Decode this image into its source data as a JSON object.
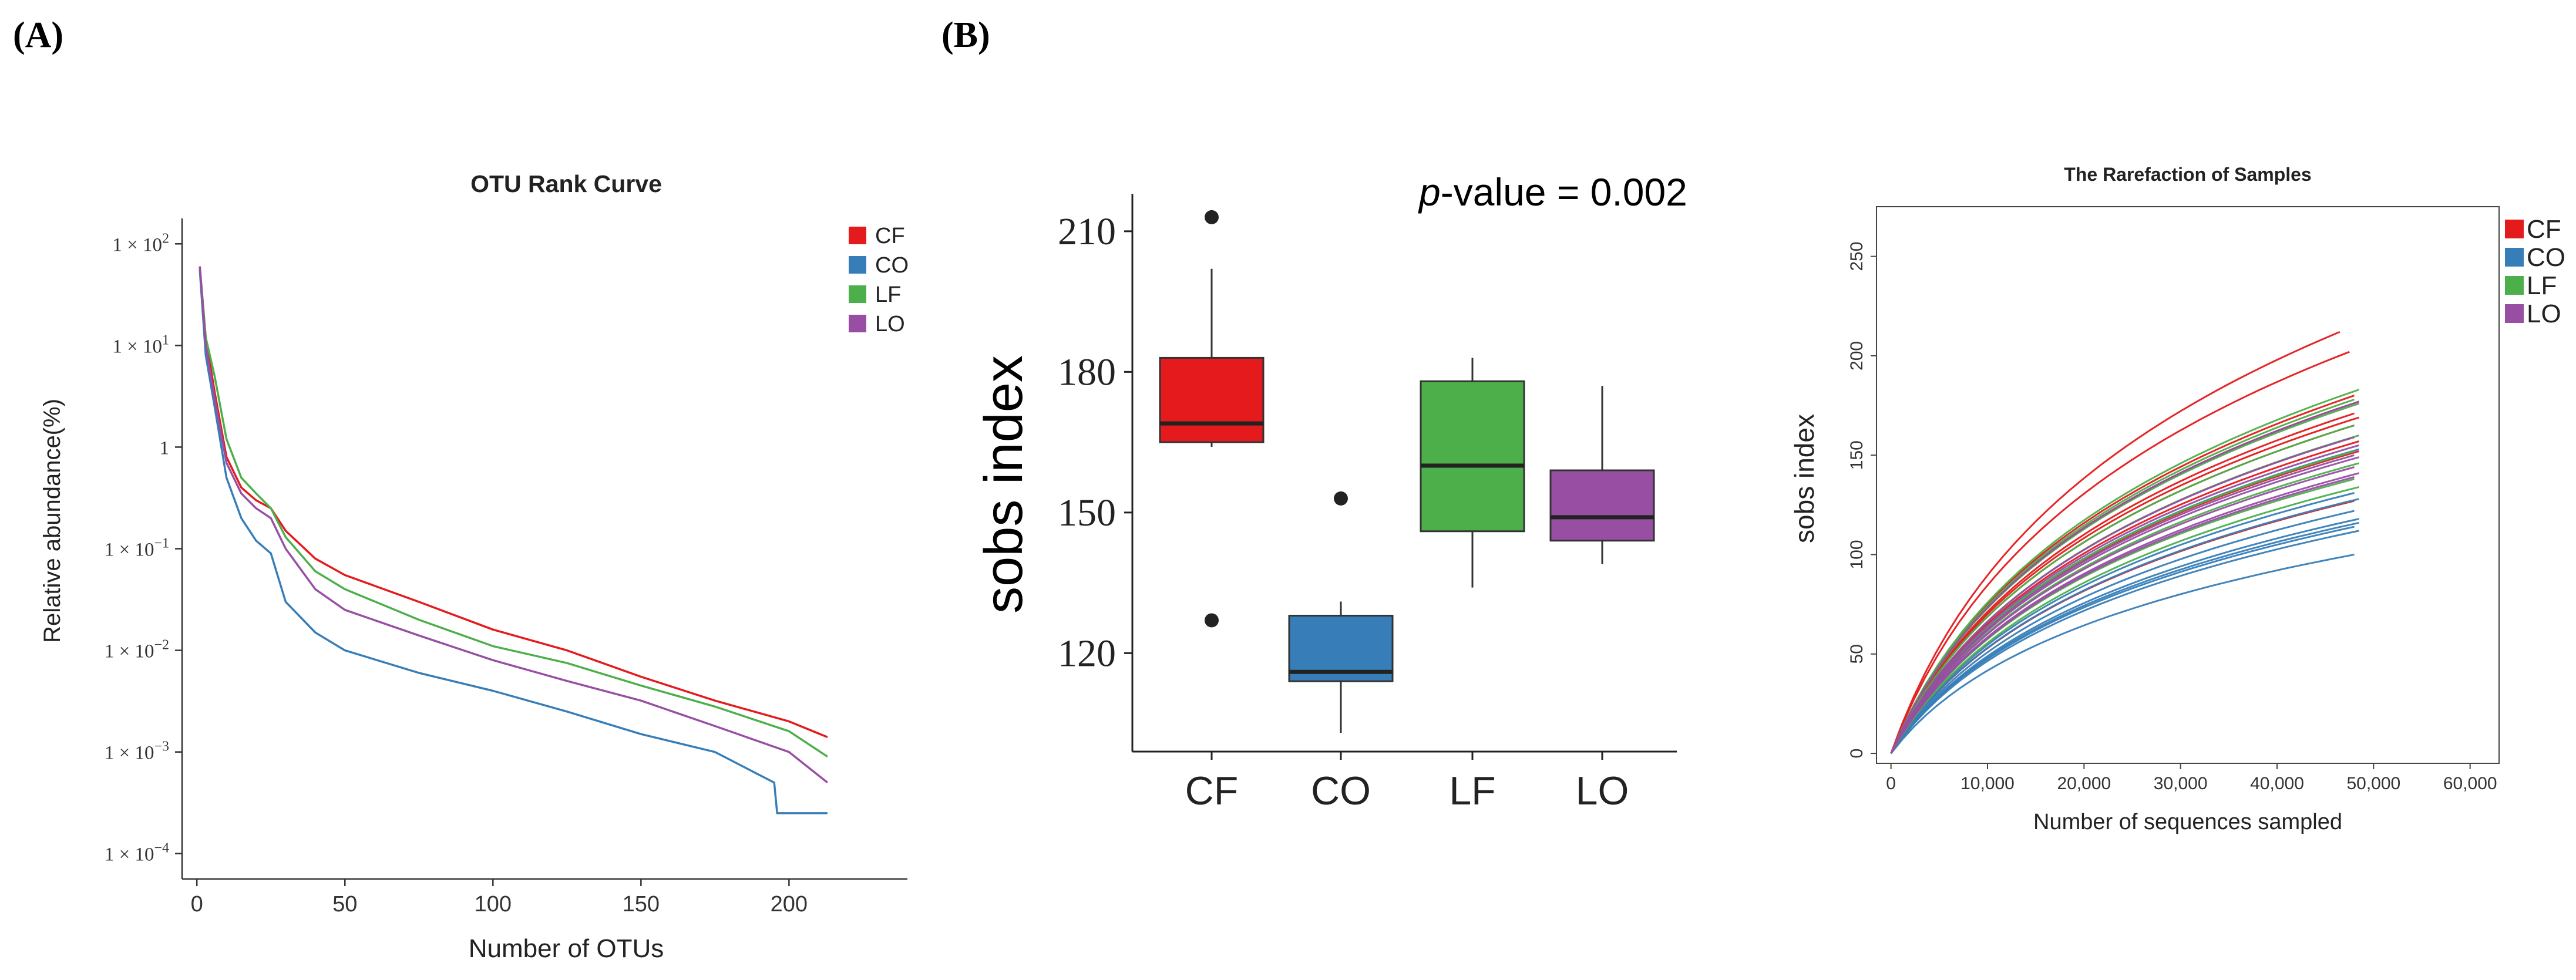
{
  "panels": {
    "a_label": "(A)",
    "b_label": "(B)"
  },
  "colors": {
    "CF": "#e41a1c",
    "CO": "#377eb8",
    "LF": "#4daf4a",
    "LO": "#984ea3"
  },
  "chart_data": [
    {
      "id": "otu-rank",
      "type": "line",
      "title": "OTU Rank Curve",
      "xlabel": "Number of OTUs",
      "ylabel": "Relative abundance(%)",
      "xlim": [
        -5,
        240
      ],
      "xticks": [
        0,
        50,
        100,
        150,
        200
      ],
      "ylog": true,
      "ylim_log10": [
        -4.25,
        2.25
      ],
      "yticks": [
        {
          "exp": 2,
          "label": "1 × 10",
          "sup": "2"
        },
        {
          "exp": 1,
          "label": "1 × 10",
          "sup": "1"
        },
        {
          "exp": 0,
          "label": "1",
          "sup": ""
        },
        {
          "exp": -1,
          "label": "1 × 10",
          "sup": "−1"
        },
        {
          "exp": -2,
          "label": "1 × 10",
          "sup": "−2"
        },
        {
          "exp": -3,
          "label": "1 × 10",
          "sup": "−3"
        },
        {
          "exp": -4,
          "label": "1 × 10",
          "sup": "−4"
        }
      ],
      "legend": [
        "CF",
        "CO",
        "LF",
        "LO"
      ],
      "series": [
        {
          "name": "CF",
          "points": [
            [
              1,
              60
            ],
            [
              3,
              12
            ],
            [
              6,
              3.5
            ],
            [
              10,
              0.8
            ],
            [
              15,
              0.4
            ],
            [
              20,
              0.3
            ],
            [
              25,
              0.25
            ],
            [
              30,
              0.15
            ],
            [
              40,
              0.08
            ],
            [
              50,
              0.055
            ],
            [
              75,
              0.03
            ],
            [
              100,
              0.016
            ],
            [
              125,
              0.01
            ],
            [
              150,
              0.0055
            ],
            [
              175,
              0.0032
            ],
            [
              200,
              0.002
            ],
            [
              213,
              0.0014
            ]
          ]
        },
        {
          "name": "CO",
          "points": [
            [
              1,
              55
            ],
            [
              3,
              8
            ],
            [
              6,
              2.5
            ],
            [
              10,
              0.5
            ],
            [
              15,
              0.2
            ],
            [
              20,
              0.12
            ],
            [
              25,
              0.09
            ],
            [
              30,
              0.03
            ],
            [
              40,
              0.015
            ],
            [
              50,
              0.01
            ],
            [
              75,
              0.006
            ],
            [
              100,
              0.004
            ],
            [
              125,
              0.0025
            ],
            [
              150,
              0.0015
            ],
            [
              175,
              0.001
            ],
            [
              195,
              0.0005
            ],
            [
              196,
              0.00025
            ],
            [
              213,
              0.00025
            ]
          ]
        },
        {
          "name": "LF",
          "points": [
            [
              1,
              58
            ],
            [
              3,
              12
            ],
            [
              6,
              5
            ],
            [
              10,
              1.2
            ],
            [
              15,
              0.5
            ],
            [
              20,
              0.35
            ],
            [
              25,
              0.25
            ],
            [
              30,
              0.13
            ],
            [
              40,
              0.06
            ],
            [
              50,
              0.04
            ],
            [
              75,
              0.02
            ],
            [
              100,
              0.011
            ],
            [
              125,
              0.0075
            ],
            [
              150,
              0.0045
            ],
            [
              175,
              0.0028
            ],
            [
              200,
              0.0016
            ],
            [
              213,
              0.0009
            ]
          ]
        },
        {
          "name": "LO",
          "points": [
            [
              1,
              60
            ],
            [
              3,
              10
            ],
            [
              6,
              3
            ],
            [
              10,
              0.7
            ],
            [
              15,
              0.35
            ],
            [
              20,
              0.25
            ],
            [
              25,
              0.2
            ],
            [
              30,
              0.1
            ],
            [
              40,
              0.04
            ],
            [
              50,
              0.025
            ],
            [
              75,
              0.014
            ],
            [
              100,
              0.008
            ],
            [
              125,
              0.005
            ],
            [
              150,
              0.0032
            ],
            [
              175,
              0.0018
            ],
            [
              200,
              0.001
            ],
            [
              213,
              0.0005
            ]
          ]
        }
      ]
    },
    {
      "id": "sobs-boxplot",
      "type": "box",
      "annotation_prefix": "p",
      "annotation_text": "-value = 0.002",
      "ylabel": "sobs index",
      "ylim": [
        99,
        218
      ],
      "yticks": [
        120,
        150,
        180,
        210
      ],
      "categories": [
        "CF",
        "CO",
        "LF",
        "LO"
      ],
      "boxes": [
        {
          "name": "CF",
          "whisker_low": 164,
          "q1": 165,
          "median": 169,
          "q3": 183,
          "whisker_high": 202,
          "outliers": [
            213,
            127
          ]
        },
        {
          "name": "CO",
          "whisker_low": 103,
          "q1": 114,
          "median": 116,
          "q3": 128,
          "whisker_high": 131,
          "outliers": [
            153
          ]
        },
        {
          "name": "LF",
          "whisker_low": 134,
          "q1": 146,
          "median": 160,
          "q3": 178,
          "whisker_high": 183,
          "outliers": []
        },
        {
          "name": "LO",
          "whisker_low": 139,
          "q1": 144,
          "median": 149,
          "q3": 159,
          "whisker_high": 177,
          "outliers": []
        }
      ]
    },
    {
      "id": "rarefaction",
      "type": "line",
      "title": "The Rarefaction of Samples",
      "xlabel": "Number of sequences sampled",
      "ylabel": "sobs index",
      "xlim": [
        -1500,
        63000
      ],
      "ylim": [
        -5,
        275
      ],
      "xticks": [
        0,
        10000,
        20000,
        30000,
        40000,
        50000,
        60000
      ],
      "xtick_labels": [
        "0",
        "10,000",
        "20,000",
        "30,000",
        "40,000",
        "50,000",
        "60,000"
      ],
      "yticks": [
        0,
        50,
        100,
        150,
        200,
        250
      ],
      "legend": [
        "CF",
        "CO",
        "LF",
        "LO"
      ],
      "series": [
        {
          "name": "CF",
          "final_x": 46500,
          "final_y": 212
        },
        {
          "name": "CF",
          "final_x": 47500,
          "final_y": 202
        },
        {
          "name": "CF",
          "final_x": 48000,
          "final_y": 180
        },
        {
          "name": "CF",
          "final_x": 48500,
          "final_y": 177
        },
        {
          "name": "CF",
          "final_x": 48000,
          "final_y": 171
        },
        {
          "name": "CF",
          "final_x": 48500,
          "final_y": 169
        },
        {
          "name": "CF",
          "final_x": 48000,
          "final_y": 165
        },
        {
          "name": "CF",
          "final_x": 48500,
          "final_y": 157
        },
        {
          "name": "CF",
          "final_x": 48000,
          "final_y": 127
        },
        {
          "name": "CF",
          "final_x": 48500,
          "final_y": 152
        },
        {
          "name": "CO",
          "final_x": 48500,
          "final_y": 153
        },
        {
          "name": "CO",
          "final_x": 48000,
          "final_y": 131
        },
        {
          "name": "CO",
          "final_x": 48500,
          "final_y": 128
        },
        {
          "name": "CO",
          "final_x": 48000,
          "final_y": 122
        },
        {
          "name": "CO",
          "final_x": 48500,
          "final_y": 118
        },
        {
          "name": "CO",
          "final_x": 48500,
          "final_y": 116
        },
        {
          "name": "CO",
          "final_x": 48000,
          "final_y": 114
        },
        {
          "name": "CO",
          "final_x": 48500,
          "final_y": 112
        },
        {
          "name": "CO",
          "final_x": 48000,
          "final_y": 100
        },
        {
          "name": "LF",
          "final_x": 48500,
          "final_y": 183
        },
        {
          "name": "LF",
          "final_x": 48000,
          "final_y": 178
        },
        {
          "name": "LF",
          "final_x": 48500,
          "final_y": 176
        },
        {
          "name": "LF",
          "final_x": 48000,
          "final_y": 165
        },
        {
          "name": "LF",
          "final_x": 48500,
          "final_y": 160
        },
        {
          "name": "LF",
          "final_x": 48000,
          "final_y": 152
        },
        {
          "name": "LF",
          "final_x": 48500,
          "final_y": 146
        },
        {
          "name": "LF",
          "final_x": 48000,
          "final_y": 138
        },
        {
          "name": "LF",
          "final_x": 48500,
          "final_y": 134
        },
        {
          "name": "LO",
          "final_x": 48500,
          "final_y": 177
        },
        {
          "name": "LO",
          "final_x": 48000,
          "final_y": 159
        },
        {
          "name": "LO",
          "final_x": 48500,
          "final_y": 155
        },
        {
          "name": "LO",
          "final_x": 48000,
          "final_y": 150
        },
        {
          "name": "LO",
          "final_x": 48500,
          "final_y": 149
        },
        {
          "name": "LO",
          "final_x": 48000,
          "final_y": 144
        },
        {
          "name": "LO",
          "final_x": 48500,
          "final_y": 141
        },
        {
          "name": "LO",
          "final_x": 48000,
          "final_y": 139
        }
      ]
    }
  ]
}
